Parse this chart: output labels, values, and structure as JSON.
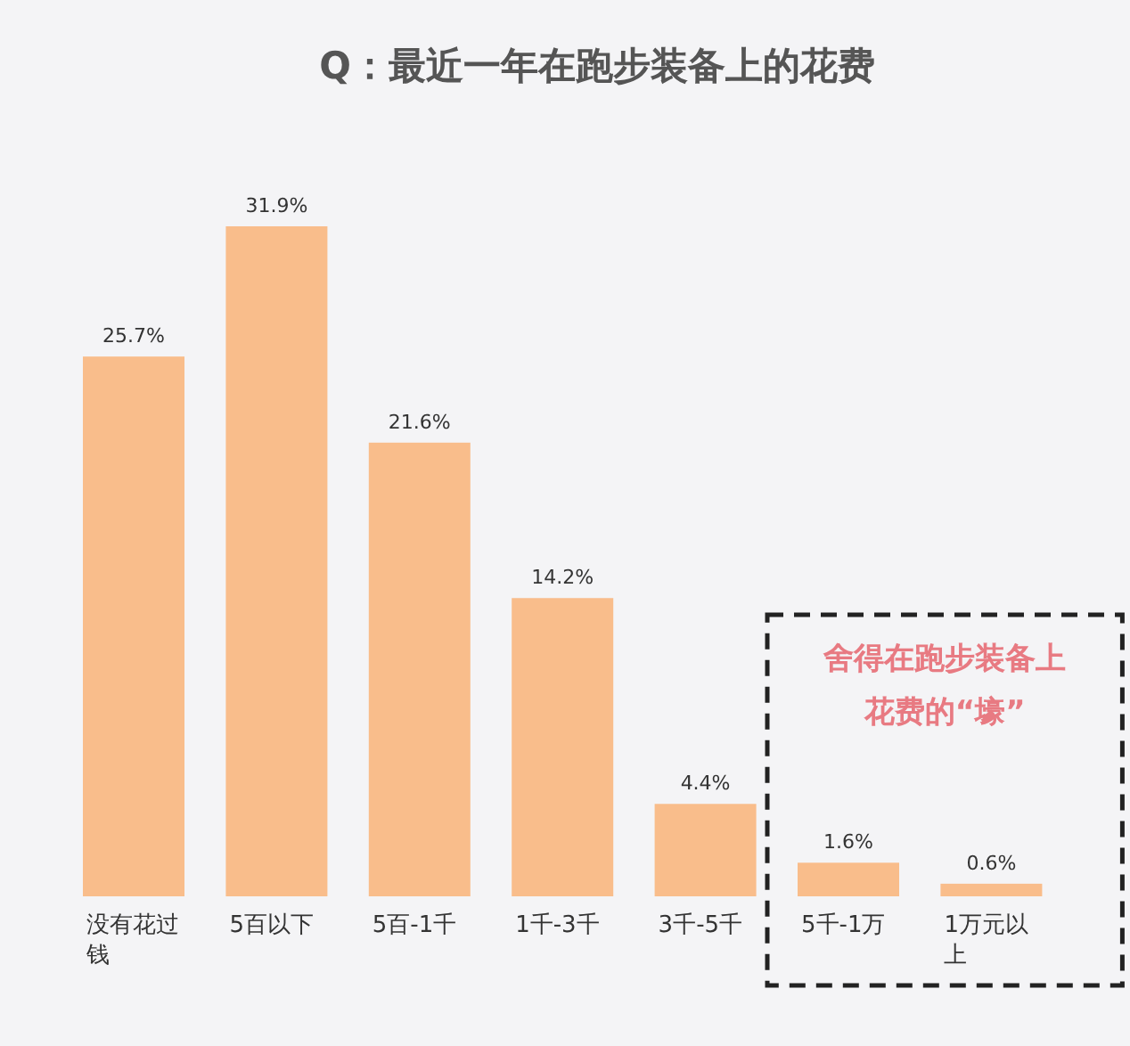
{
  "chart_data": {
    "type": "bar",
    "title": "Q：最近一年在跑步装备上的花费",
    "categories": [
      "没有花过钱",
      "5百以下",
      "5百-1千",
      "1千-3千",
      "3千-5千",
      "5千-1万",
      "1万元以上"
    ],
    "values": [
      25.7,
      31.9,
      21.6,
      14.2,
      4.4,
      1.6,
      0.6
    ],
    "value_labels": [
      "25.7%",
      "31.9%",
      "21.6%",
      "14.2%",
      "4.4%",
      "1.6%",
      "0.6%"
    ],
    "color": "#f9bd8b",
    "annotations": [
      "舍得在跑步装备上花费的“壕”"
    ]
  }
}
